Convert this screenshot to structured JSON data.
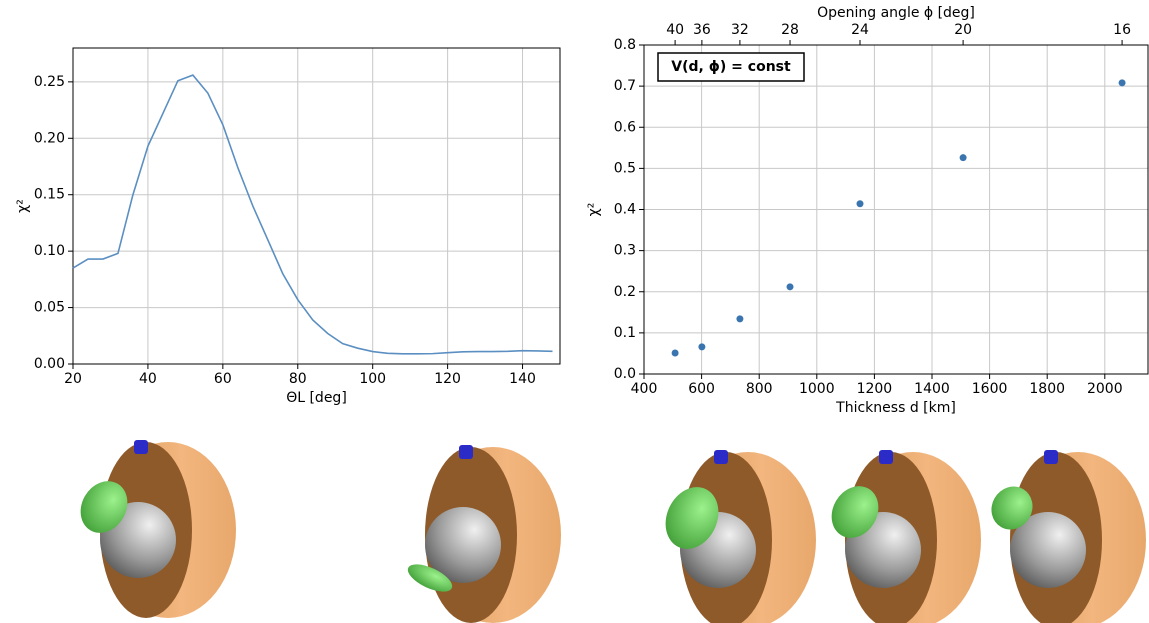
{
  "chart_data": [
    {
      "type": "line",
      "xlabel": "ΘL [deg]",
      "ylabel": "χ²",
      "color": "#5b8fc2",
      "grid": true,
      "x": [
        20,
        24,
        28,
        32,
        36,
        40,
        44,
        48,
        52,
        56,
        60,
        64,
        68,
        72,
        76,
        80,
        84,
        88,
        92,
        96,
        100,
        104,
        108,
        112,
        116,
        120,
        124,
        128,
        132,
        136,
        140,
        144,
        148
      ],
      "values": [
        0.085,
        0.093,
        0.093,
        0.098,
        0.15,
        0.193,
        0.222,
        0.251,
        0.256,
        0.24,
        0.212,
        0.174,
        0.14,
        0.11,
        0.08,
        0.057,
        0.039,
        0.027,
        0.018,
        0.014,
        0.011,
        0.0095,
        0.009,
        0.009,
        0.0092,
        0.01,
        0.0108,
        0.011,
        0.011,
        0.0112,
        0.0118,
        0.0116,
        0.0112
      ],
      "xlim": [
        20,
        150
      ],
      "xticks": [
        20,
        40,
        60,
        80,
        100,
        120,
        140
      ],
      "ylim": [
        0,
        0.28
      ],
      "yticks": [
        {
          "value": 0,
          "label": "0.00"
        },
        {
          "value": 0.05,
          "label": "0.05"
        },
        {
          "value": 0.1,
          "label": "0.10"
        },
        {
          "value": 0.15,
          "label": "0.15"
        },
        {
          "value": 0.2,
          "label": "0.20"
        },
        {
          "value": 0.25,
          "label": "0.25"
        }
      ]
    },
    {
      "type": "scatter",
      "xlabel": "Thickness d [km]",
      "x2label": "Opening angle ϕ [deg]",
      "ylabel": "χ²",
      "annotation": "V(d, ϕ) = const",
      "color": "#3a75b0",
      "grid": true,
      "x": [
        508,
        601,
        733,
        907,
        1150,
        1508,
        2060
      ],
      "values": [
        0.051,
        0.066,
        0.134,
        0.212,
        0.414,
        0.526,
        0.708
      ],
      "xlim": [
        400,
        2150
      ],
      "xticks": [
        400,
        600,
        800,
        1000,
        1200,
        1400,
        1600,
        1800,
        2000
      ],
      "x2ticks": [
        {
          "value": 508,
          "label": "40"
        },
        {
          "value": 601,
          "label": "36"
        },
        {
          "value": 733,
          "label": "32"
        },
        {
          "value": 907,
          "label": "28"
        },
        {
          "value": 1150,
          "label": "24"
        },
        {
          "value": 1508,
          "label": "20"
        },
        {
          "value": 2060,
          "label": "16"
        }
      ],
      "ylim": [
        0,
        0.8
      ],
      "yticks": [
        {
          "value": 0,
          "label": "0.0"
        },
        {
          "value": 0.1,
          "label": "0.1"
        },
        {
          "value": 0.2,
          "label": "0.2"
        },
        {
          "value": 0.3,
          "label": "0.3"
        },
        {
          "value": 0.4,
          "label": "0.4"
        },
        {
          "value": 0.5,
          "label": "0.5"
        },
        {
          "value": 0.6,
          "label": "0.6"
        },
        {
          "value": 0.7,
          "label": "0.7"
        },
        {
          "value": 0.8,
          "label": "0.8"
        }
      ]
    }
  ]
}
